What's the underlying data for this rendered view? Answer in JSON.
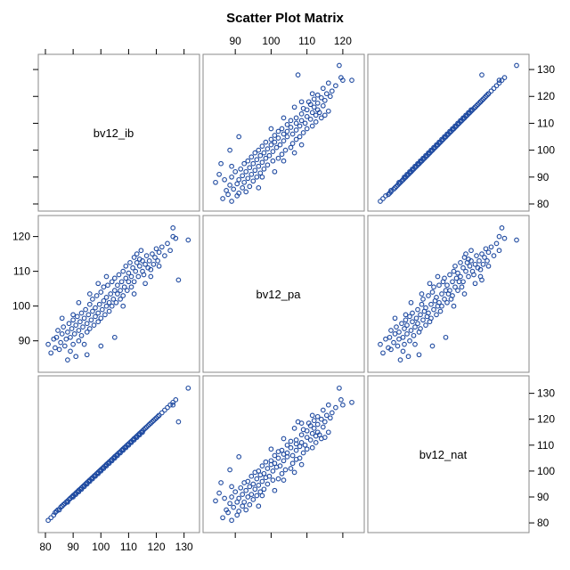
{
  "chart_data": {
    "type": "scatter",
    "title": "Scatter Plot Matrix",
    "variables": [
      "bv12_ib",
      "bv12_pa",
      "bv12_nat"
    ],
    "ranges": {
      "bv12_ib": [
        80,
        133
      ],
      "bv12_pa": [
        83,
        124
      ],
      "bv12_nat": [
        79,
        134
      ]
    },
    "ticks": {
      "bv12_ib": [
        80,
        90,
        100,
        110,
        120,
        130
      ],
      "bv12_pa": [
        90,
        100,
        110,
        120
      ],
      "bv12_nat": [
        80,
        90,
        100,
        110,
        120,
        130
      ]
    },
    "colors": {
      "marker": "#1f4aa0",
      "frame": "#8a8a8a"
    },
    "grid": false,
    "points": [
      [
        81.0,
        89.0,
        81.0
      ],
      [
        82.0,
        86.5,
        82.0
      ],
      [
        83.0,
        90.5,
        83.0
      ],
      [
        83.5,
        88.0,
        84.0
      ],
      [
        84.0,
        91.0,
        84.5
      ],
      [
        84.5,
        93.0,
        85.0
      ],
      [
        85.0,
        87.5,
        85.0
      ],
      [
        85.5,
        89.5,
        86.0
      ],
      [
        86.0,
        92.0,
        86.5
      ],
      [
        86.5,
        94.0,
        87.0
      ],
      [
        87.0,
        88.5,
        87.5
      ],
      [
        87.5,
        90.5,
        88.0
      ],
      [
        88.0,
        92.5,
        88.0
      ],
      [
        88.5,
        95.0,
        89.0
      ],
      [
        89.0,
        87.0,
        89.5
      ],
      [
        89.0,
        91.0,
        89.5
      ],
      [
        89.5,
        93.5,
        90.0
      ],
      [
        90.0,
        96.0,
        90.5
      ],
      [
        90.0,
        89.0,
        90.0
      ],
      [
        90.5,
        92.0,
        91.0
      ],
      [
        91.0,
        94.5,
        91.0
      ],
      [
        91.0,
        85.5,
        91.5
      ],
      [
        91.5,
        97.0,
        92.0
      ],
      [
        92.0,
        90.0,
        92.0
      ],
      [
        92.0,
        93.0,
        92.5
      ],
      [
        92.5,
        95.5,
        93.0
      ],
      [
        93.0,
        98.0,
        93.0
      ],
      [
        93.0,
        91.5,
        93.5
      ],
      [
        93.5,
        94.0,
        94.0
      ],
      [
        94.0,
        96.5,
        94.5
      ],
      [
        94.0,
        89.0,
        94.0
      ],
      [
        94.5,
        99.0,
        95.0
      ],
      [
        95.0,
        92.5,
        95.5
      ],
      [
        95.0,
        95.0,
        95.0
      ],
      [
        95.5,
        97.5,
        96.0
      ],
      [
        96.0,
        100.5,
        96.5
      ],
      [
        96.0,
        93.5,
        96.0
      ],
      [
        96.5,
        96.0,
        97.0
      ],
      [
        97.0,
        98.5,
        97.5
      ],
      [
        97.0,
        102.0,
        97.0
      ],
      [
        97.5,
        94.5,
        98.0
      ],
      [
        98.0,
        97.0,
        98.5
      ],
      [
        98.0,
        99.5,
        98.0
      ],
      [
        98.5,
        103.0,
        99.0
      ],
      [
        99.0,
        95.5,
        99.5
      ],
      [
        99.0,
        98.0,
        99.0
      ],
      [
        99.5,
        100.5,
        100.0
      ],
      [
        100.0,
        104.0,
        100.5
      ],
      [
        100.0,
        96.5,
        100.0
      ],
      [
        100.5,
        99.0,
        101.0
      ],
      [
        101.0,
        101.5,
        101.5
      ],
      [
        101.0,
        105.5,
        101.0
      ],
      [
        101.5,
        97.5,
        102.0
      ],
      [
        102.0,
        100.0,
        102.5
      ],
      [
        102.0,
        102.5,
        102.0
      ],
      [
        102.5,
        106.0,
        103.0
      ],
      [
        103.0,
        98.5,
        103.5
      ],
      [
        103.0,
        101.0,
        103.0
      ],
      [
        103.5,
        103.5,
        104.0
      ],
      [
        104.0,
        107.0,
        104.5
      ],
      [
        104.0,
        100.0,
        104.0
      ],
      [
        104.5,
        102.0,
        105.0
      ],
      [
        105.0,
        104.5,
        105.5
      ],
      [
        105.0,
        108.0,
        105.0
      ],
      [
        105.5,
        101.0,
        106.0
      ],
      [
        106.0,
        103.5,
        106.5
      ],
      [
        106.0,
        106.0,
        106.0
      ],
      [
        106.5,
        109.0,
        107.0
      ],
      [
        107.0,
        102.0,
        107.5
      ],
      [
        107.0,
        104.5,
        107.0
      ],
      [
        107.5,
        107.0,
        108.0
      ],
      [
        108.0,
        110.0,
        108.5
      ],
      [
        108.0,
        103.0,
        108.0
      ],
      [
        108.5,
        105.5,
        109.0
      ],
      [
        109.0,
        108.0,
        109.5
      ],
      [
        109.0,
        111.5,
        109.0
      ],
      [
        109.5,
        104.5,
        110.0
      ],
      [
        110.0,
        107.0,
        110.5
      ],
      [
        110.0,
        109.5,
        110.0
      ],
      [
        110.5,
        112.5,
        111.0
      ],
      [
        111.0,
        105.5,
        111.5
      ],
      [
        111.0,
        108.5,
        111.0
      ],
      [
        111.5,
        111.0,
        112.0
      ],
      [
        112.0,
        114.0,
        112.5
      ],
      [
        112.0,
        107.0,
        112.0
      ],
      [
        112.5,
        110.0,
        113.0
      ],
      [
        113.0,
        112.5,
        113.5
      ],
      [
        113.0,
        115.0,
        113.0
      ],
      [
        113.5,
        108.5,
        114.0
      ],
      [
        114.0,
        111.5,
        114.5
      ],
      [
        114.0,
        113.5,
        114.0
      ],
      [
        114.5,
        116.0,
        115.0
      ],
      [
        115.0,
        110.0,
        115.5
      ],
      [
        115.0,
        113.0,
        115.0
      ],
      [
        115.5,
        109.0,
        116.0
      ],
      [
        116.0,
        112.0,
        116.5
      ],
      [
        116.5,
        114.5,
        117.0
      ],
      [
        117.0,
        111.0,
        117.5
      ],
      [
        117.5,
        113.0,
        118.0
      ],
      [
        118.0,
        110.5,
        118.5
      ],
      [
        118.5,
        115.0,
        119.0
      ],
      [
        119.0,
        112.0,
        119.5
      ],
      [
        119.5,
        114.0,
        120.0
      ],
      [
        120.0,
        116.5,
        120.5
      ],
      [
        120.5,
        113.0,
        121.0
      ],
      [
        121.0,
        115.5,
        121.5
      ],
      [
        122.0,
        117.0,
        122.5
      ],
      [
        123.0,
        114.5,
        123.5
      ],
      [
        124.0,
        118.0,
        124.5
      ],
      [
        125.0,
        116.0,
        125.5
      ],
      [
        126.0,
        122.5,
        126.5
      ],
      [
        126.0,
        120.0,
        125.5
      ],
      [
        127.0,
        119.5,
        127.5
      ],
      [
        128.0,
        107.5,
        119.0
      ],
      [
        131.5,
        119.0,
        132.0
      ],
      [
        88.0,
        84.5,
        88.5
      ],
      [
        95.0,
        86.0,
        95.5
      ],
      [
        100.0,
        88.5,
        100.5
      ],
      [
        105.0,
        91.0,
        105.5
      ],
      [
        90.0,
        97.5,
        90.5
      ],
      [
        96.0,
        103.5,
        96.5
      ],
      [
        102.0,
        108.5,
        102.5
      ],
      [
        108.0,
        100.0,
        108.5
      ],
      [
        112.0,
        103.5,
        112.5
      ],
      [
        116.0,
        106.5,
        116.5
      ],
      [
        118.0,
        108.5,
        118.5
      ],
      [
        121.0,
        111.5,
        121.5
      ],
      [
        86.0,
        96.5,
        86.5
      ],
      [
        92.0,
        101.0,
        92.5
      ],
      [
        99.0,
        106.5,
        99.5
      ]
    ]
  }
}
